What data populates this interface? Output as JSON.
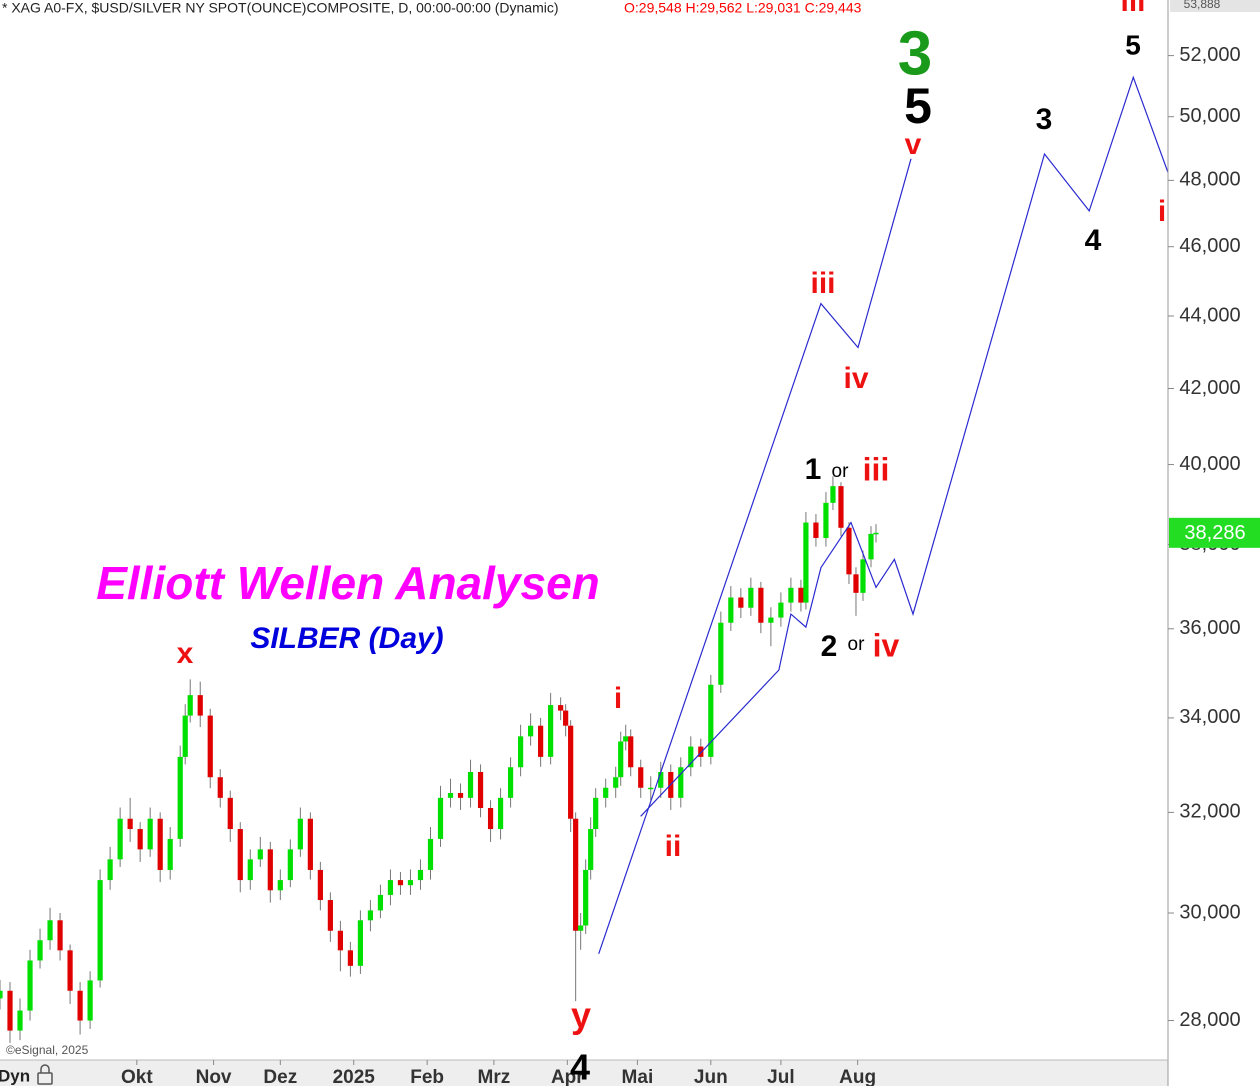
{
  "chart_data": {
    "type": "candlestick",
    "title": "* XAG A0-FX, $USD/SILVER NY SPOT(OUNCE)COMPOSITE, D, 00:00-00:00 (Dynamic)",
    "ohlc_text": "O:29,548 H:29,562 L:29,031 C:29,443",
    "ohlc_color": "#ff0000",
    "log_scale": true,
    "ylim": [
      27300,
      53888
    ],
    "scale_top": {
      "value": 53888,
      "label": "53,888"
    },
    "yticks": [
      {
        "value": 28000,
        "label": "28,000"
      },
      {
        "value": 30000,
        "label": "30,000"
      },
      {
        "value": 32000,
        "label": "32,000"
      },
      {
        "value": 34000,
        "label": "34,000"
      },
      {
        "value": 36000,
        "label": "36,000"
      },
      {
        "value": 38000,
        "label": "38,000"
      },
      {
        "value": 40000,
        "label": "40,000"
      },
      {
        "value": 42000,
        "label": "42,000"
      },
      {
        "value": 44000,
        "label": "44,000"
      },
      {
        "value": 46000,
        "label": "46,000"
      },
      {
        "value": 48000,
        "label": "48,000"
      },
      {
        "value": 50000,
        "label": "50,000"
      },
      {
        "value": 52000,
        "label": "52,000"
      }
    ],
    "xlim": [
      0,
      350
    ],
    "xticks": [
      {
        "value": 41,
        "label": "Okt"
      },
      {
        "value": 64,
        "label": "Nov"
      },
      {
        "value": 84,
        "label": "Dez"
      },
      {
        "value": 106,
        "label": "2025"
      },
      {
        "value": 128,
        "label": "Feb"
      },
      {
        "value": 148,
        "label": "Mrz"
      },
      {
        "value": 170,
        "label": "Apr"
      },
      {
        "value": 191,
        "label": "Mai"
      },
      {
        "value": 213,
        "label": "Jun"
      },
      {
        "value": 234,
        "label": "Jul"
      },
      {
        "value": 257,
        "label": "Aug"
      }
    ],
    "up_color": "#00e000",
    "down_color": "#e00000",
    "wick_color": "#777777",
    "x": [
      0,
      3,
      6,
      9,
      12,
      15,
      18,
      21,
      24,
      27,
      30,
      33,
      36,
      39,
      42,
      45,
      48,
      51,
      54,
      55.5,
      57,
      60,
      63,
      66,
      69,
      72,
      75,
      78,
      81,
      84,
      87,
      90,
      93,
      96,
      99,
      102,
      105,
      108,
      111,
      114,
      117,
      120,
      123,
      126,
      129,
      132,
      135,
      138,
      141,
      144,
      147,
      150,
      153,
      156,
      159,
      162,
      165,
      168,
      169.5,
      171,
      172.5,
      174,
      175.5,
      177,
      178.5,
      181.5,
      184.5,
      186,
      187.5,
      189,
      192,
      195,
      198,
      201,
      204,
      207,
      210,
      213,
      216,
      219,
      222,
      225,
      228,
      231,
      234,
      237,
      240,
      241.5,
      244.5,
      247.5,
      249.6,
      252,
      254.4,
      256.5,
      258.6,
      261,
      262.5
    ],
    "open": [
      28400,
      28540,
      27820,
      28180,
      29100,
      29480,
      29860,
      29290,
      28540,
      28000,
      28730,
      30640,
      31050,
      31870,
      31660,
      31250,
      31870,
      30840,
      31460,
      33160,
      34050,
      34500,
      34050,
      32730,
      32300,
      31660,
      30640,
      31050,
      31250,
      30440,
      30640,
      31250,
      31870,
      30840,
      30250,
      29660,
      29290,
      29000,
      29860,
      30050,
      30350,
      30640,
      30540,
      30640,
      30840,
      31460,
      32300,
      32400,
      32300,
      32840,
      32090,
      31660,
      32300,
      32940,
      33600,
      33830,
      33160,
      34280,
      34160,
      33830,
      31870,
      29660,
      29760,
      30840,
      31660,
      32300,
      32510,
      32730,
      33490,
      33600,
      32940,
      32510,
      32510,
      32840,
      32300,
      32940,
      33380,
      33160,
      34730,
      36140,
      36730,
      36490,
      36960,
      36140,
      36260,
      36610,
      36960,
      36610,
      38540,
      38160,
      39030,
      39450,
      38410,
      37280,
      36840,
      37640,
      38260
    ],
    "high": [
      28740,
      28700,
      28400,
      29300,
      29700,
      30100,
      30000,
      29400,
      28700,
      28900,
      30850,
      31300,
      32100,
      32300,
      31800,
      32100,
      32000,
      31700,
      33400,
      34300,
      34850,
      34800,
      34200,
      32900,
      32450,
      31800,
      31250,
      31500,
      31400,
      30850,
      31450,
      32100,
      32000,
      31000,
      30400,
      29850,
      29450,
      30050,
      30250,
      30550,
      30850,
      30800,
      30850,
      31050,
      31700,
      32550,
      32700,
      32600,
      33100,
      33000,
      32250,
      32500,
      33150,
      33850,
      34100,
      34000,
      34550,
      34450,
      34300,
      33950,
      32000,
      30000,
      31050,
      31900,
      32500,
      32700,
      32950,
      33700,
      33850,
      33750,
      33100,
      32750,
      33050,
      33000,
      33150,
      33600,
      33550,
      34950,
      36400,
      37000,
      36950,
      37200,
      37100,
      36500,
      36850,
      37200,
      37150,
      38800,
      38750,
      39300,
      39700,
      39550,
      38550,
      37450,
      37850,
      38450,
      38500
    ],
    "low": [
      28200,
      27600,
      27650,
      28000,
      28950,
      29300,
      29100,
      28300,
      27750,
      27850,
      28600,
      30450,
      30900,
      31400,
      31000,
      31100,
      30600,
      30650,
      31300,
      33000,
      33900,
      33800,
      32500,
      32100,
      31400,
      30400,
      30450,
      30900,
      30200,
      30250,
      30500,
      31100,
      30650,
      30050,
      29450,
      28900,
      28800,
      28850,
      29650,
      29900,
      30150,
      30350,
      30350,
      30450,
      30650,
      31300,
      32100,
      32050,
      32100,
      31900,
      31400,
      31450,
      32100,
      32750,
      33400,
      32950,
      33000,
      33950,
      33600,
      31600,
      28350,
      29300,
      29600,
      30650,
      31500,
      32100,
      32300,
      32550,
      33300,
      32750,
      32300,
      32250,
      32300,
      32050,
      32100,
      32750,
      32950,
      33000,
      34550,
      35950,
      36250,
      36300,
      35900,
      35600,
      36050,
      36400,
      36400,
      36450,
      37950,
      37950,
      38850,
      38200,
      37050,
      36300,
      36650,
      37450,
      38050
    ],
    "close": [
      28540,
      27820,
      28180,
      29100,
      29480,
      29860,
      29290,
      28540,
      28000,
      28730,
      30640,
      31050,
      31870,
      31660,
      31250,
      31870,
      30840,
      31460,
      33160,
      34050,
      34500,
      34050,
      32730,
      32300,
      31660,
      30640,
      31050,
      31250,
      30440,
      30640,
      31250,
      31870,
      30840,
      30250,
      29660,
      29290,
      29000,
      29860,
      30050,
      30350,
      30640,
      30540,
      30640,
      30840,
      31460,
      32300,
      32400,
      32300,
      32840,
      32090,
      31660,
      32300,
      32940,
      33600,
      33830,
      33160,
      34280,
      34160,
      33830,
      31870,
      29660,
      29760,
      30840,
      31660,
      32300,
      32510,
      32730,
      33490,
      33600,
      32940,
      32510,
      32510,
      32840,
      32300,
      32940,
      33380,
      33160,
      34730,
      36140,
      36730,
      36490,
      36960,
      36140,
      36260,
      36610,
      36960,
      36610,
      38540,
      38160,
      39030,
      39450,
      38410,
      37280,
      36840,
      37640,
      38260,
      38286
    ],
    "last_price": {
      "value": 38286,
      "label": "38,286"
    },
    "last_price_color": "#22dd22",
    "lines": [
      {
        "color": "#2a2ad0",
        "x": [
          179.4,
          246,
          257.1,
          273
        ],
        "values": [
          29225,
          44350,
          43120,
          48670
        ]
      },
      {
        "color": "#2a2ad0",
        "x": [
          192,
          233.4,
          237,
          241.5,
          246,
          255,
          262.5,
          268,
          273.6,
          313,
          326.4,
          339.6,
          350.4
        ],
        "values": [
          31920,
          35060,
          36340,
          36040,
          37440,
          38540,
          36970,
          37640,
          36340,
          48820,
          47070,
          51280,
          48130
        ]
      }
    ],
    "annotations": [
      {
        "text": "3",
        "color": "#1a9a1a"
      },
      {
        "text": "5",
        "color": "#000000"
      },
      {
        "text": "v",
        "color": "#ee1111"
      },
      {
        "text": "iii",
        "color": "#ee1111"
      },
      {
        "text": "iv",
        "color": "#ee1111"
      },
      {
        "text": "1",
        "color": "#000000"
      },
      {
        "text": "or",
        "color": "#000000"
      },
      {
        "text": "iii",
        "color": "#ee1111"
      },
      {
        "text": "2",
        "color": "#000000"
      },
      {
        "text": "or",
        "color": "#000000"
      },
      {
        "text": "iv",
        "color": "#ee1111"
      },
      {
        "text": "x",
        "color": "#ee1111"
      },
      {
        "text": "y",
        "color": "#ee1111"
      },
      {
        "text": "4",
        "color": "#000000"
      },
      {
        "text": "i",
        "color": "#ee1111"
      },
      {
        "text": "ii",
        "color": "#ee1111"
      },
      {
        "text": "3",
        "color": "#000000"
      },
      {
        "text": "4",
        "color": "#000000"
      },
      {
        "text": "5",
        "color": "#000000"
      },
      {
        "text": "i",
        "color": "#ee1111"
      },
      {
        "text": "iii",
        "color": "#ee1111"
      },
      {
        "text": "Elliott Wellen Analysen",
        "color": "#ff00ff"
      },
      {
        "text": "SILBER (Day)",
        "color": "#0000dd"
      }
    ],
    "footer_left": "Dyn",
    "copyright": "©eSignal, 2025"
  }
}
